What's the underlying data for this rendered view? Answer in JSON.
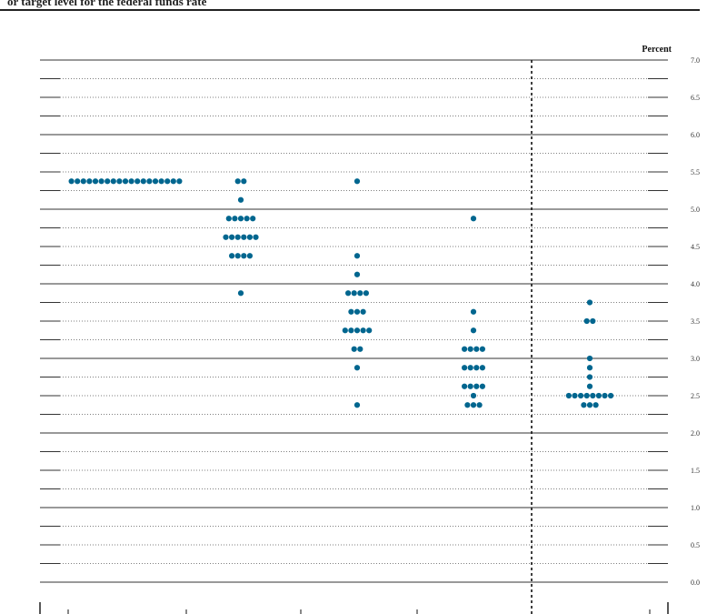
{
  "page": {
    "subtitle": "or target level for the federal funds rate"
  },
  "chart_data": {
    "type": "scatter",
    "title": "",
    "xlabel": "",
    "ylabel": "Percent",
    "ylim": [
      0,
      7
    ],
    "y_ticks": [
      "0.0",
      "0.5",
      "1.0",
      "1.5",
      "2.0",
      "2.5",
      "3.0",
      "3.5",
      "4.0",
      "4.5",
      "5.0",
      "5.5",
      "6.0",
      "6.5",
      "7.0"
    ],
    "dot_color": "#00668f",
    "columns": [
      {
        "dots": [
          {
            "y": 5.375,
            "count": 19
          }
        ]
      },
      {
        "dots": [
          {
            "y": 5.375,
            "count": 2
          },
          {
            "y": 5.125,
            "count": 1
          },
          {
            "y": 4.875,
            "count": 5
          },
          {
            "y": 4.625,
            "count": 6
          },
          {
            "y": 4.375,
            "count": 4
          },
          {
            "y": 3.875,
            "count": 1
          }
        ]
      },
      {
        "dots": [
          {
            "y": 5.375,
            "count": 1
          },
          {
            "y": 4.375,
            "count": 1
          },
          {
            "y": 4.125,
            "count": 1
          },
          {
            "y": 3.875,
            "count": 4
          },
          {
            "y": 3.625,
            "count": 3
          },
          {
            "y": 3.375,
            "count": 5
          },
          {
            "y": 3.125,
            "count": 2
          },
          {
            "y": 2.875,
            "count": 1
          },
          {
            "y": 2.375,
            "count": 1
          }
        ]
      },
      {
        "dots": [
          {
            "y": 4.875,
            "count": 1
          },
          {
            "y": 3.625,
            "count": 1
          },
          {
            "y": 3.375,
            "count": 1
          },
          {
            "y": 3.125,
            "count": 4
          },
          {
            "y": 2.875,
            "count": 4
          },
          {
            "y": 2.625,
            "count": 4
          },
          {
            "y": 2.5,
            "count": 1
          },
          {
            "y": 2.375,
            "count": 3
          }
        ]
      },
      {
        "dots": [
          {
            "y": 3.75,
            "count": 1
          },
          {
            "y": 3.5,
            "count": 2
          },
          {
            "y": 3.0,
            "count": 1
          },
          {
            "y": 2.875,
            "count": 1
          },
          {
            "y": 2.75,
            "count": 1
          },
          {
            "y": 2.625,
            "count": 1
          },
          {
            "y": 2.5,
            "count": 8
          },
          {
            "y": 2.375,
            "count": 3
          }
        ]
      }
    ]
  }
}
